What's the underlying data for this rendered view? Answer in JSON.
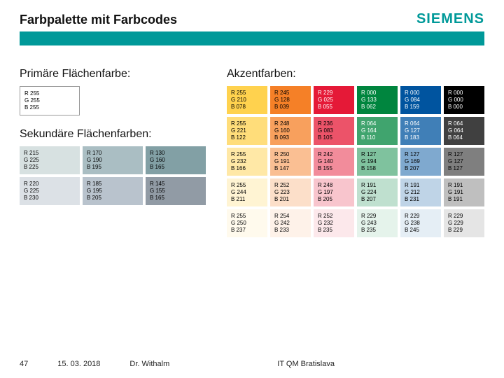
{
  "header": {
    "title": "Farbpalette mit Farbcodes",
    "logo": "SIEMENS"
  },
  "primary": {
    "heading": "Primäre Flächenfarbe:",
    "swatches": [
      {
        "r": 255,
        "g": 255,
        "b": 255,
        "text_dark": false,
        "bordered": true
      }
    ]
  },
  "secondary": {
    "heading": "Sekundäre Flächenfarben:",
    "swatches": [
      {
        "r": 215,
        "g": 225,
        "b": 225
      },
      {
        "r": 170,
        "g": 190,
        "b": 195
      },
      {
        "r": 130,
        "g": 160,
        "b": 165
      },
      {
        "r": 220,
        "g": 225,
        "b": 230
      },
      {
        "r": 185,
        "g": 195,
        "b": 205
      },
      {
        "r": 145,
        "g": 155,
        "b": 165
      }
    ]
  },
  "accent": {
    "heading": "Akzentfarben:",
    "rows": [
      [
        {
          "r": 255,
          "g": 210,
          "b": 78
        },
        {
          "r": 245,
          "g": 128,
          "b": 39
        },
        {
          "r": 229,
          "g": 25,
          "b": 55,
          "dark": true
        },
        {
          "r": 0,
          "g": 133,
          "b": 62,
          "dark": true
        },
        {
          "r": 0,
          "g": 84,
          "b": 159,
          "dark": true
        },
        {
          "r": 0,
          "g": 0,
          "b": 0,
          "dark": true
        }
      ],
      [
        {
          "r": 255,
          "g": 221,
          "b": 122
        },
        {
          "r": 248,
          "g": 160,
          "b": 93
        },
        {
          "r": 236,
          "g": 83,
          "b": 105
        },
        {
          "r": 64,
          "g": 164,
          "b": 110,
          "dark": true
        },
        {
          "r": 64,
          "g": 127,
          "b": 183,
          "dark": true
        },
        {
          "r": 64,
          "g": 64,
          "b": 64,
          "dark": true
        }
      ],
      [
        {
          "r": 255,
          "g": 232,
          "b": 166
        },
        {
          "r": 250,
          "g": 191,
          "b": 147
        },
        {
          "r": 242,
          "g": 140,
          "b": 155
        },
        {
          "r": 127,
          "g": 194,
          "b": 158
        },
        {
          "r": 127,
          "g": 169,
          "b": 207
        },
        {
          "r": 127,
          "g": 127,
          "b": 127
        }
      ],
      [
        {
          "r": 255,
          "g": 244,
          "b": 211
        },
        {
          "r": 252,
          "g": 223,
          "b": 201
        },
        {
          "r": 248,
          "g": 197,
          "b": 205
        },
        {
          "r": 191,
          "g": 224,
          "b": 207
        },
        {
          "r": 191,
          "g": 212,
          "b": 231
        },
        {
          "r": 191,
          "g": 191,
          "b": 191
        }
      ],
      [
        {
          "r": 255,
          "g": 250,
          "b": 237
        },
        {
          "r": 254,
          "g": 242,
          "b": 233
        },
        {
          "r": 252,
          "g": 232,
          "b": 235
        },
        {
          "r": 229,
          "g": 243,
          "b": 235
        },
        {
          "r": 229,
          "g": 238,
          "b": 245
        },
        {
          "r": 229,
          "g": 229,
          "b": 229
        }
      ]
    ]
  },
  "footer": {
    "page": "47",
    "date": "15. 03. 2018",
    "author": "Dr. Withalm",
    "center": "IT QM Bratislava"
  }
}
